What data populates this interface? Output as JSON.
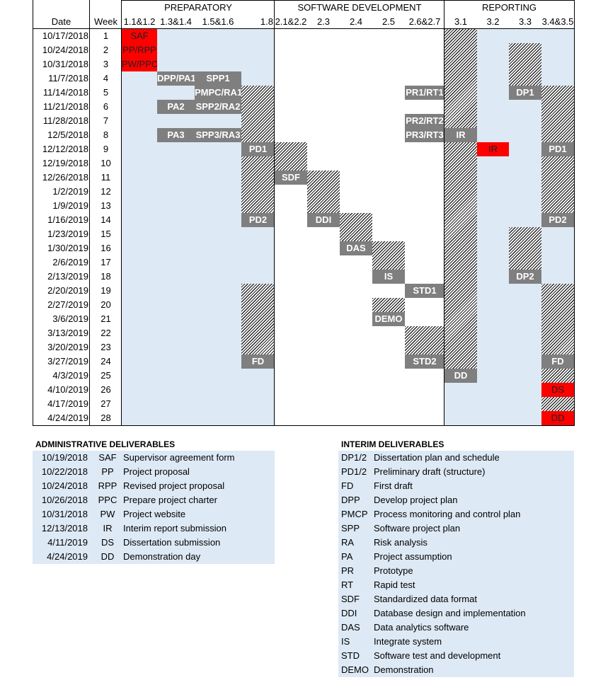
{
  "phases": [
    "PREPARATORY",
    "SOFTWARE DEVELOPMENT",
    "REPORTING"
  ],
  "header": {
    "date": "Date",
    "week": "Week",
    "columns": [
      "1.1&1.2",
      "1.3&1.4",
      "1.5&1.6",
      "1.8",
      "2.1&2.2",
      "2.3",
      "2.4",
      "2.5",
      "2.6&2.7",
      "3.1",
      "3.2",
      "3.3",
      "3.4&3.5"
    ]
  },
  "rows": [
    {
      "date": "10/17/2018",
      "week": "1"
    },
    {
      "date": "10/24/2018",
      "week": "2"
    },
    {
      "date": "10/31/2018",
      "week": "3"
    },
    {
      "date": "11/7/2018",
      "week": "4"
    },
    {
      "date": "11/14/2018",
      "week": "5"
    },
    {
      "date": "11/21/2018",
      "week": "6"
    },
    {
      "date": "11/28/2018",
      "week": "7"
    },
    {
      "date": "12/5/2018",
      "week": "8"
    },
    {
      "date": "12/12/2018",
      "week": "9"
    },
    {
      "date": "12/19/2018",
      "week": "10"
    },
    {
      "date": "12/26/2018",
      "week": "11"
    },
    {
      "date": "1/2/2019",
      "week": "12"
    },
    {
      "date": "1/9/2019",
      "week": "13"
    },
    {
      "date": "1/16/2019",
      "week": "14"
    },
    {
      "date": "1/23/2019",
      "week": "15"
    },
    {
      "date": "1/30/2019",
      "week": "16"
    },
    {
      "date": "2/6/2019",
      "week": "17"
    },
    {
      "date": "2/13/2019",
      "week": "18"
    },
    {
      "date": "2/20/2019",
      "week": "19"
    },
    {
      "date": "2/27/2019",
      "week": "20"
    },
    {
      "date": "3/6/2019",
      "week": "21"
    },
    {
      "date": "3/13/2019",
      "week": "22"
    },
    {
      "date": "3/20/2019",
      "week": "23"
    },
    {
      "date": "3/27/2019",
      "week": "24"
    },
    {
      "date": "4/3/2019",
      "week": "25"
    },
    {
      "date": "4/10/2019",
      "week": "26"
    },
    {
      "date": "4/17/2019",
      "week": "27"
    },
    {
      "date": "4/24/2019",
      "week": "28"
    }
  ],
  "hatch_blocks": [
    {
      "col": 3,
      "from": 5,
      "to": 8
    },
    {
      "col": 3,
      "from": 10,
      "to": 13
    },
    {
      "col": 3,
      "from": 19,
      "to": 23
    },
    {
      "col": 4,
      "from": 9,
      "to": 10
    },
    {
      "col": 5,
      "from": 11,
      "to": 13
    },
    {
      "col": 6,
      "from": 14,
      "to": 15
    },
    {
      "col": 7,
      "from": 16,
      "to": 17
    },
    {
      "col": 7,
      "from": 20,
      "to": 20
    },
    {
      "col": 8,
      "from": 22,
      "to": 23
    },
    {
      "col": 9,
      "from": 1,
      "to": 7
    },
    {
      "col": 9,
      "from": 9,
      "to": 24
    },
    {
      "col": 11,
      "from": 2,
      "to": 4
    },
    {
      "col": 11,
      "from": 15,
      "to": 17
    },
    {
      "col": 12,
      "from": 5,
      "to": 8
    },
    {
      "col": 12,
      "from": 10,
      "to": 13
    },
    {
      "col": 12,
      "from": 19,
      "to": 23
    },
    {
      "col": 12,
      "from": 25,
      "to": 25
    },
    {
      "col": 12,
      "from": 27,
      "to": 27
    }
  ],
  "tasks": [
    {
      "label": "SAF",
      "col": 0,
      "row": 1,
      "span": 1,
      "color": "red"
    },
    {
      "label": "PP/RPP",
      "col": 0,
      "row": 2,
      "span": 1,
      "color": "red"
    },
    {
      "label": "PW/PPC",
      "col": 0,
      "row": 3,
      "span": 1,
      "color": "red"
    },
    {
      "label": "DPP/PA1",
      "col": 1,
      "row": 4,
      "span": 1,
      "color": "grey"
    },
    {
      "label": "SPP1",
      "col": 2,
      "row": 4,
      "span": 1,
      "color": "grey"
    },
    {
      "label": "PMPC/RA1",
      "col": 2,
      "row": 5,
      "span": 1,
      "color": "grey"
    },
    {
      "label": "PA2",
      "col": 1,
      "row": 6,
      "span": 1,
      "color": "grey"
    },
    {
      "label": "SPP2/RA2",
      "col": 2,
      "row": 6,
      "span": 1,
      "color": "grey"
    },
    {
      "label": "PA3",
      "col": 1,
      "row": 8,
      "span": 1,
      "color": "grey"
    },
    {
      "label": "SPP3/RA3",
      "col": 2,
      "row": 8,
      "span": 1,
      "color": "grey"
    },
    {
      "label": "PD1",
      "col": 3,
      "row": 9,
      "span": 1,
      "color": "grey"
    },
    {
      "label": "PD2",
      "col": 3,
      "row": 14,
      "span": 1,
      "color": "grey"
    },
    {
      "label": "FD",
      "col": 3,
      "row": 24,
      "span": 1,
      "color": "grey"
    },
    {
      "label": "SDF",
      "col": 4,
      "row": 11,
      "span": 1,
      "color": "grey"
    },
    {
      "label": "DDI",
      "col": 5,
      "row": 14,
      "span": 1,
      "color": "grey"
    },
    {
      "label": "DAS",
      "col": 6,
      "row": 16,
      "span": 1,
      "color": "grey"
    },
    {
      "label": "IS",
      "col": 7,
      "row": 18,
      "span": 1,
      "color": "grey"
    },
    {
      "label": "DEMO",
      "col": 7,
      "row": 21,
      "span": 1,
      "color": "grey"
    },
    {
      "label": "PR1/RT1",
      "col": 8,
      "row": 5,
      "span": 1,
      "color": "grey"
    },
    {
      "label": "PR2/RT2",
      "col": 8,
      "row": 7,
      "span": 1,
      "color": "grey"
    },
    {
      "label": "PR3/RT3",
      "col": 8,
      "row": 8,
      "span": 1,
      "color": "grey"
    },
    {
      "label": "STD1",
      "col": 8,
      "row": 19,
      "span": 1,
      "color": "grey"
    },
    {
      "label": "STD2",
      "col": 8,
      "row": 24,
      "span": 1,
      "color": "grey"
    },
    {
      "label": "IR",
      "col": 9,
      "row": 8,
      "span": 1,
      "color": "grey"
    },
    {
      "label": "DD",
      "col": 9,
      "row": 25,
      "span": 1,
      "color": "grey"
    },
    {
      "label": "IR",
      "col": 10,
      "row": 9,
      "span": 1,
      "color": "red"
    },
    {
      "label": "DP1",
      "col": 11,
      "row": 5,
      "span": 1,
      "color": "grey"
    },
    {
      "label": "DP2",
      "col": 11,
      "row": 18,
      "span": 1,
      "color": "grey"
    },
    {
      "label": "PD1",
      "col": 12,
      "row": 9,
      "span": 1,
      "color": "grey"
    },
    {
      "label": "PD2",
      "col": 12,
      "row": 14,
      "span": 1,
      "color": "grey"
    },
    {
      "label": "FD",
      "col": 12,
      "row": 24,
      "span": 1,
      "color": "grey"
    },
    {
      "label": "DS",
      "col": 12,
      "row": 26,
      "span": 1,
      "color": "red"
    },
    {
      "label": "DD",
      "col": 12,
      "row": 28,
      "span": 1,
      "color": "red"
    }
  ],
  "admin": {
    "title": "ADMINISTRATIVE DELIVERABLES",
    "items": [
      {
        "date": "10/19/2018",
        "code": "SAF",
        "desc": "Supervisor agreement form"
      },
      {
        "date": "10/22/2018",
        "code": "PP",
        "desc": "Project proposal"
      },
      {
        "date": "10/24/2018",
        "code": "RPP",
        "desc": "Revised project proposal"
      },
      {
        "date": "10/26/2018",
        "code": "PPC",
        "desc": "Prepare project charter"
      },
      {
        "date": "10/31/2018",
        "code": "PW",
        "desc": "Project website"
      },
      {
        "date": "12/13/2018",
        "code": "IR",
        "desc": "Interim report submission"
      },
      {
        "date": "4/11/2019",
        "code": "DS",
        "desc": "Dissertation submission"
      },
      {
        "date": "4/24/2019",
        "code": "DD",
        "desc": "Demonstration day"
      }
    ]
  },
  "interim": {
    "title": "INTERIM DELIVERABLES",
    "items": [
      {
        "code": "DP1/2",
        "desc": "Dissertation plan and schedule"
      },
      {
        "code": "PD1/2",
        "desc": "Preliminary draft (structure)"
      },
      {
        "code": "FD",
        "desc": "First draft"
      },
      {
        "code": "DPP",
        "desc": "Develop project plan"
      },
      {
        "code": "PMCP",
        "desc": "Process monitoring and control plan"
      },
      {
        "code": "SPP",
        "desc": "Software project plan"
      },
      {
        "code": "RA",
        "desc": "Risk analysis"
      },
      {
        "code": "PA",
        "desc": "Project assumption"
      },
      {
        "code": "PR",
        "desc": "Prototype"
      },
      {
        "code": "RT",
        "desc": "Rapid test"
      },
      {
        "code": "SDF",
        "desc": "Standardized data format"
      },
      {
        "code": "DDI",
        "desc": "Database design and implementation"
      },
      {
        "code": "DAS",
        "desc": "Data analytics software"
      },
      {
        "code": "IS",
        "desc": "Integrate system"
      },
      {
        "code": "STD",
        "desc": "Software test and development"
      },
      {
        "code": "DEMO",
        "desc": "Demonstration"
      }
    ]
  },
  "colors": {
    "band": "#dde9f5",
    "grey": "#7f7f7f",
    "red": "#ff0000"
  }
}
